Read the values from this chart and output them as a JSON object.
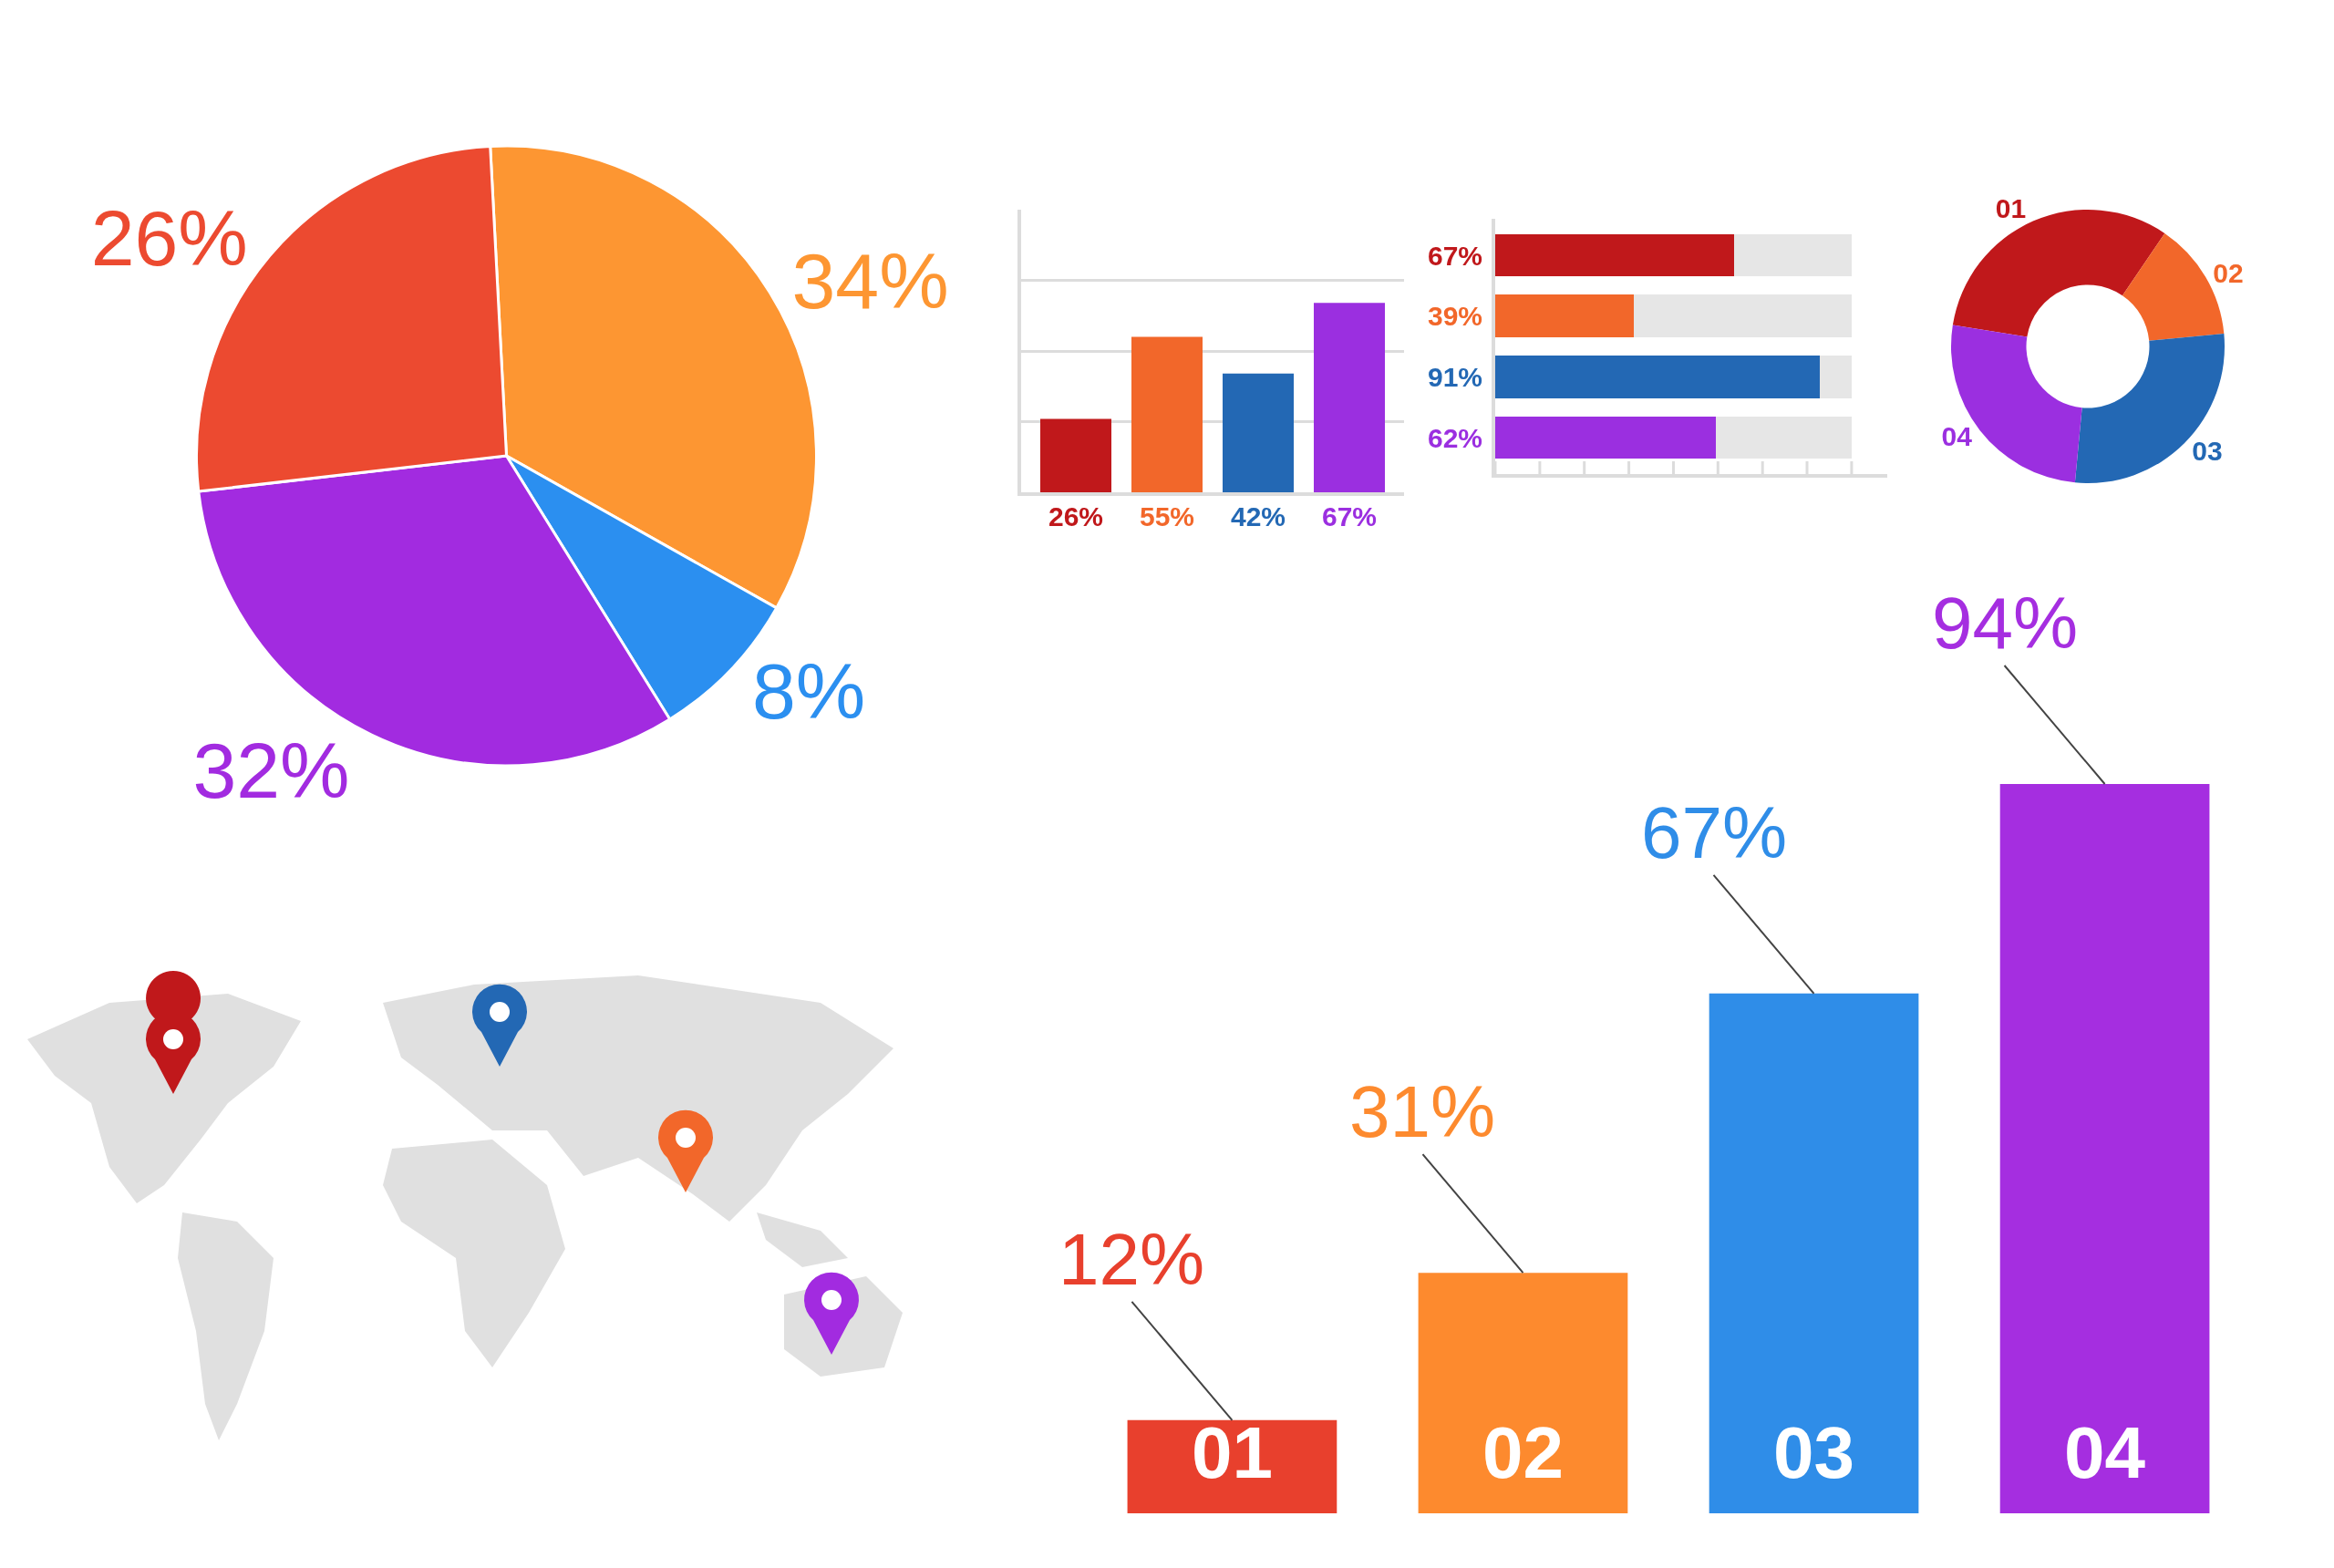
{
  "chart_data": [
    {
      "type": "pie",
      "categories": [
        null,
        null,
        null,
        null
      ],
      "values": [
        34,
        8,
        32,
        26
      ],
      "colors": [
        "#fd9632",
        "#2b8ff0",
        "#a22be0",
        "#ec4a30"
      ],
      "value_labels": [
        "34%",
        "8%",
        "32%",
        "26%"
      ]
    },
    {
      "type": "bar",
      "categories": [
        null,
        null,
        null,
        null
      ],
      "values": [
        26,
        55,
        42,
        67
      ],
      "colors": [
        "#c0181b",
        "#f2672a",
        "#2368b4",
        "#9b2fe0"
      ],
      "value_labels": [
        "26%",
        "55%",
        "42%",
        "67%"
      ],
      "ylim": [
        0,
        100
      ],
      "yticks": [
        {
          "value": 25,
          "label": null
        },
        {
          "value": 50,
          "label": null
        },
        {
          "value": 75,
          "label": null
        }
      ],
      "grid": "y"
    },
    {
      "type": "bar",
      "orientation": "horizontal",
      "stacked": true,
      "categories": [
        null,
        null,
        null,
        null
      ],
      "series": [
        {
          "colors": [
            "#c0181b",
            "#f2672a",
            "#2368b4",
            "#9b2fe0"
          ],
          "values": [
            67,
            39,
            91,
            62
          ],
          "value_labels": [
            "67%",
            "39%",
            "91%",
            "62%"
          ]
        },
        {
          "color": "#e6e6e6",
          "values": [
            33,
            61,
            9,
            38
          ]
        }
      ]
    },
    {
      "type": "donut",
      "categories": [
        "01",
        "02",
        "03",
        "04"
      ],
      "values": [
        32,
        14,
        28,
        26
      ],
      "colors": [
        "#c0181b",
        "#f2672a",
        "#2368b4",
        "#9b2fe0"
      ]
    },
    {
      "type": "bar",
      "categories": [
        "01",
        "02",
        "03",
        "04"
      ],
      "values": [
        12,
        31,
        67,
        94
      ],
      "colors": [
        "#e8402d",
        "#fd8a2e",
        "#2f8de8",
        "#a52ee0"
      ],
      "value_labels": [
        "12%",
        "31%",
        "67%",
        "94%"
      ]
    }
  ]
}
